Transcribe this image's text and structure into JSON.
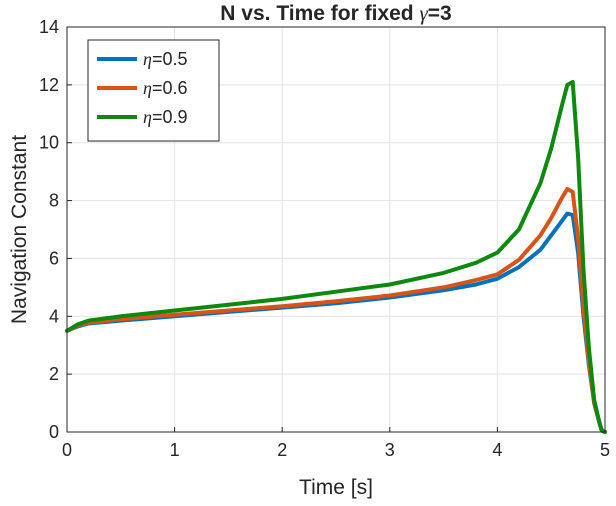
{
  "chart_data": {
    "type": "line",
    "title_prefix": "N vs. Time for fixed ",
    "title_symbol": "γ",
    "title_suffix": "=3",
    "xlabel": "Time [s]",
    "ylabel": "Navigation Constant",
    "xlim": [
      0,
      5
    ],
    "ylim": [
      0,
      14
    ],
    "x_ticks": [
      "0",
      "1",
      "2",
      "3",
      "4",
      "5"
    ],
    "y_ticks": [
      "0",
      "2",
      "4",
      "6",
      "8",
      "10",
      "12",
      "14"
    ],
    "grid": true,
    "legend_position": "top-left",
    "series": [
      {
        "symbol": "η",
        "label": "=0.5",
        "color": "#0072BD",
        "x": [
          0,
          0.1,
          0.2,
          0.5,
          1.0,
          1.5,
          2.0,
          2.5,
          3.0,
          3.5,
          3.8,
          4.0,
          4.2,
          4.4,
          4.5,
          4.6,
          4.65,
          4.7,
          4.75,
          4.8,
          4.85,
          4.9,
          4.95,
          4.97,
          5.0
        ],
        "y": [
          3.5,
          3.65,
          3.75,
          3.85,
          4.0,
          4.15,
          4.3,
          4.45,
          4.65,
          4.9,
          5.1,
          5.3,
          5.7,
          6.3,
          6.8,
          7.3,
          7.55,
          7.5,
          6.2,
          4.0,
          2.3,
          1.0,
          0.3,
          0.05,
          0
        ]
      },
      {
        "symbol": "η",
        "label": "=0.6",
        "color": "#D95319",
        "x": [
          0,
          0.1,
          0.2,
          0.5,
          1.0,
          1.5,
          2.0,
          2.5,
          3.0,
          3.5,
          3.8,
          4.0,
          4.2,
          4.4,
          4.5,
          4.6,
          4.65,
          4.7,
          4.75,
          4.8,
          4.85,
          4.9,
          4.95,
          4.97,
          5.0
        ],
        "y": [
          3.5,
          3.68,
          3.78,
          3.9,
          4.05,
          4.2,
          4.35,
          4.52,
          4.72,
          5.0,
          5.25,
          5.45,
          5.95,
          6.8,
          7.4,
          8.1,
          8.4,
          8.3,
          6.7,
          4.3,
          2.4,
          1.0,
          0.3,
          0.05,
          0
        ]
      },
      {
        "symbol": "η",
        "label": "=0.9",
        "color": "#0D8A0D",
        "x": [
          0,
          0.1,
          0.2,
          0.5,
          1.0,
          1.5,
          2.0,
          2.5,
          3.0,
          3.5,
          3.8,
          4.0,
          4.2,
          4.4,
          4.5,
          4.6,
          4.65,
          4.7,
          4.75,
          4.8,
          4.85,
          4.9,
          4.95,
          4.97,
          5.0
        ],
        "y": [
          3.5,
          3.72,
          3.85,
          4.0,
          4.2,
          4.4,
          4.6,
          4.85,
          5.1,
          5.5,
          5.85,
          6.2,
          7.0,
          8.6,
          9.8,
          11.3,
          12.0,
          12.1,
          9.5,
          5.6,
          2.9,
          1.1,
          0.3,
          0.05,
          0
        ]
      }
    ]
  }
}
